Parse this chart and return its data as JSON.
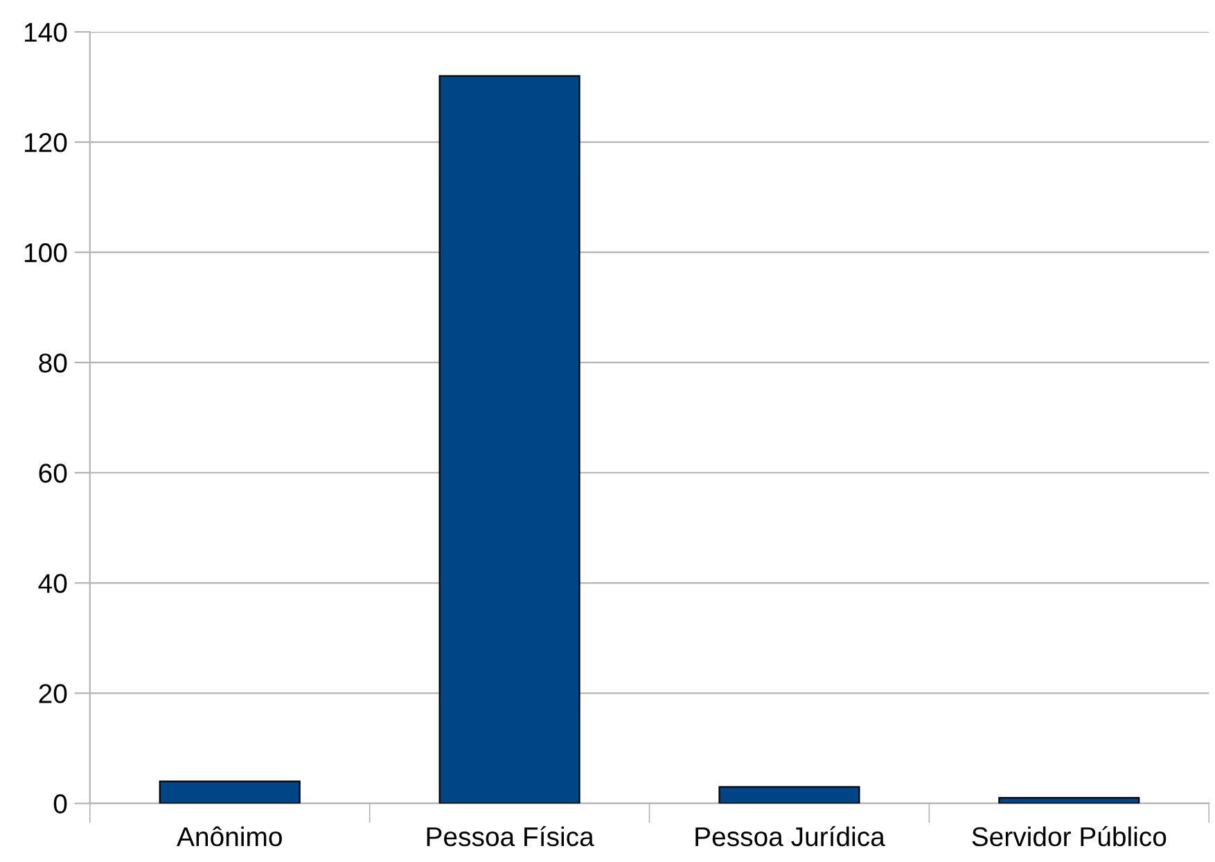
{
  "chart_data": {
    "type": "bar",
    "categories": [
      "Anônimo",
      "Pessoa Física",
      "Pessoa Jurídica",
      "Servidor Público"
    ],
    "values": [
      4,
      132,
      3,
      1
    ],
    "color": "#004586",
    "ylim": [
      0,
      140
    ],
    "yticks": [
      0,
      20,
      40,
      60,
      80,
      100,
      120,
      140
    ],
    "grid": "y",
    "legend": false
  }
}
